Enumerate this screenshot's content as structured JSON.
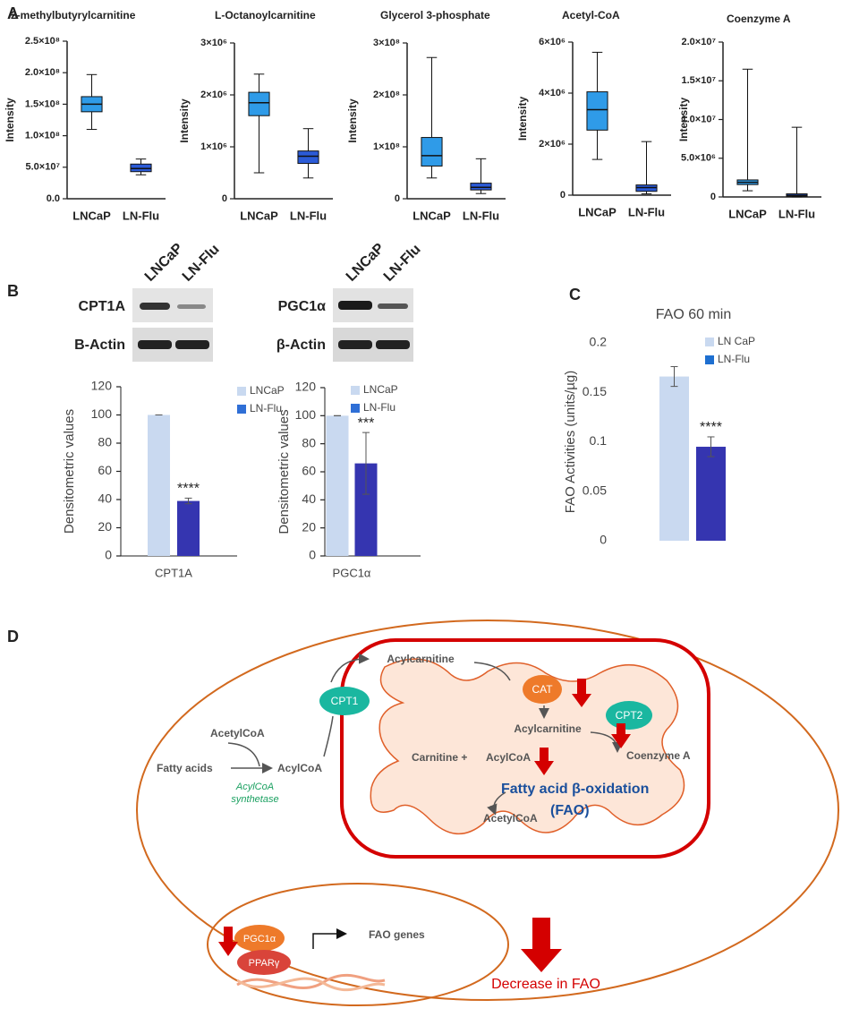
{
  "panels": {
    "a": "A",
    "b": "B",
    "c": "C",
    "d": "D"
  },
  "chart_data": [
    {
      "type": "box",
      "title": "2-methylbutyrylcarnitine",
      "ylabel": "Intensity",
      "categories": [
        "LNCaP",
        "LN-Flu"
      ],
      "colors": [
        "#2f9be8",
        "#2b5bd7"
      ],
      "boxes": [
        {
          "min": 110000000,
          "q1": 138000000,
          "median": 150000000,
          "q3": 162000000,
          "max": 197000000
        },
        {
          "min": 38000000,
          "q1": 43000000,
          "median": 48000000,
          "q3": 55000000,
          "max": 63000000
        }
      ],
      "ylim": [
        0,
        250000000
      ],
      "yticks": [
        {
          "value": 0,
          "label": "0.0"
        },
        {
          "value": 50000000,
          "label": "5.0×10⁷"
        },
        {
          "value": 100000000,
          "label": "1.0×10⁸"
        },
        {
          "value": 150000000,
          "label": "1.5×10⁸"
        },
        {
          "value": 200000000,
          "label": "2.0×10⁸"
        },
        {
          "value": 250000000,
          "label": "2.5×10⁸"
        }
      ]
    },
    {
      "type": "box",
      "title": "L-Octanoylcarnitine",
      "ylabel": "Intensity",
      "categories": [
        "LNCaP",
        "LN-Flu"
      ],
      "colors": [
        "#2f9be8",
        "#2b5bd7"
      ],
      "boxes": [
        {
          "min": 500000,
          "q1": 1600000,
          "median": 1850000,
          "q3": 2050000,
          "max": 2400000
        },
        {
          "min": 400000,
          "q1": 680000,
          "median": 820000,
          "q3": 920000,
          "max": 1350000
        }
      ],
      "ylim": [
        0,
        3000000
      ],
      "yticks": [
        0,
        {
          "value": 1000000,
          "label": "1×10⁶"
        },
        {
          "value": 2000000,
          "label": "2×10⁶"
        },
        {
          "value": 3000000,
          "label": "3×10⁶"
        }
      ]
    },
    {
      "type": "box",
      "title": "Glycerol 3-phosphate",
      "ylabel": "Intensity",
      "categories": [
        "LNCaP",
        "LN-Flu"
      ],
      "colors": [
        "#2f9be8",
        "#2b5bd7"
      ],
      "boxes": [
        {
          "min": 40000000,
          "q1": 63000000,
          "median": 83000000,
          "q3": 118000000,
          "max": 272000000
        },
        {
          "min": 10000000,
          "q1": 17000000,
          "median": 22000000,
          "q3": 30000000,
          "max": 77000000
        }
      ],
      "ylim": [
        0,
        300000000
      ],
      "yticks": [
        0,
        {
          "value": 100000000,
          "label": "1×10⁸"
        },
        {
          "value": 200000000,
          "label": "2×10⁸"
        },
        {
          "value": 300000000,
          "label": "3×10⁸"
        }
      ]
    },
    {
      "type": "box",
      "title": "Acetyl-CoA",
      "ylabel": "Intensity",
      "categories": [
        "LNCaP",
        "LN-Flu"
      ],
      "colors": [
        "#2f9be8",
        "#2b5bd7"
      ],
      "boxes": [
        {
          "min": 1400000,
          "q1": 2550000,
          "median": 3350000,
          "q3": 4050000,
          "max": 5600000
        },
        {
          "min": 50000,
          "q1": 150000,
          "median": 300000,
          "q3": 400000,
          "max": 2100000
        }
      ],
      "ylim": [
        0,
        6000000
      ],
      "yticks": [
        0,
        {
          "value": 2000000,
          "label": "2×10⁶"
        },
        {
          "value": 4000000,
          "label": "4×10⁶"
        },
        {
          "value": 6000000,
          "label": "6×10⁶"
        }
      ]
    },
    {
      "type": "box",
      "title": "Coenzyme A",
      "ylabel": "Intensity",
      "categories": [
        "LNCaP",
        "LN-Flu"
      ],
      "colors": [
        "#2f9be8",
        "#2b5bd7"
      ],
      "boxes": [
        {
          "min": 800000,
          "q1": 1600000,
          "median": 1900000,
          "q3": 2200000,
          "max": 16500000
        },
        {
          "min": 0,
          "q1": 100000,
          "median": 200000,
          "q3": 400000,
          "max": 9000000
        }
      ],
      "ylim": [
        0,
        20000000
      ],
      "yticks": [
        0,
        {
          "value": 5000000,
          "label": "5.0×10⁶"
        },
        {
          "value": 10000000,
          "label": "1.0×10⁷"
        },
        {
          "value": 15000000,
          "label": "1.5×10⁷"
        },
        {
          "value": 20000000,
          "label": "2.0×10⁷"
        }
      ]
    },
    {
      "type": "bar",
      "ylabel": "Densitometric values",
      "categories": [
        "CPT1A"
      ],
      "legend": "upper right",
      "series": [
        {
          "name": "LNCaP",
          "color": "#c9d9f0",
          "values": [
            100
          ],
          "errors": [
            0
          ]
        },
        {
          "name": "LN-Flu",
          "color": "#3535b0",
          "values": [
            39
          ],
          "errors": [
            2
          ]
        }
      ],
      "annotation": "****",
      "ylim": [
        0,
        120
      ],
      "yticks": [
        0,
        20,
        40,
        60,
        80,
        100,
        120
      ]
    },
    {
      "type": "bar",
      "ylabel": "Densitometric values",
      "categories": [
        "PGC1α"
      ],
      "legend": "upper right",
      "series": [
        {
          "name": "LNCaP",
          "color": "#c9d9f0",
          "values": [
            100
          ],
          "errors": [
            0
          ]
        },
        {
          "name": "LN-Flu",
          "color": "#3535b0",
          "values": [
            66
          ],
          "errors": [
            22
          ]
        }
      ],
      "annotation": "***",
      "ylim": [
        0,
        120
      ],
      "yticks": [
        0,
        20,
        40,
        60,
        80,
        100,
        120
      ]
    },
    {
      "type": "bar",
      "title": "FAO 60 min",
      "ylabel": "FAO Activities (units/µg)",
      "categories": [
        null
      ],
      "legend": "upper right",
      "series": [
        {
          "name": "LN CaP",
          "color": "#c9d9f0",
          "values": [
            0.166
          ],
          "errors": [
            0.01
          ]
        },
        {
          "name": "LN-Flu",
          "color": "#3535b0",
          "values": [
            0.095
          ],
          "errors": [
            0.01
          ]
        }
      ],
      "annotation": "****",
      "ylim": [
        0,
        0.2
      ],
      "yticks": [
        0,
        0.05,
        0.1,
        0.15,
        0.2
      ]
    }
  ],
  "blots": {
    "columns": [
      "LNCaP",
      "LN-Flu"
    ],
    "left": [
      "CPT1A",
      "B-Actin"
    ],
    "right": [
      "PGC1α",
      "β-Actin"
    ]
  },
  "diagram": {
    "labels": [
      "CPT1",
      "Acylcarnitine",
      "CAT",
      "Acylcarnitine",
      "CPT2",
      "Coenzyme A",
      "AcetylCoA",
      "Fatty acids",
      "AcylCoA",
      "AcylCoA",
      "synthetase",
      "Carnitine +",
      "AcylCoA",
      "Fatty acid β-oxidation",
      "(FAO)",
      "AcetylCoA",
      "PGC1α",
      "PPARγ",
      "FAO genes",
      "Decrease in FAO"
    ]
  }
}
